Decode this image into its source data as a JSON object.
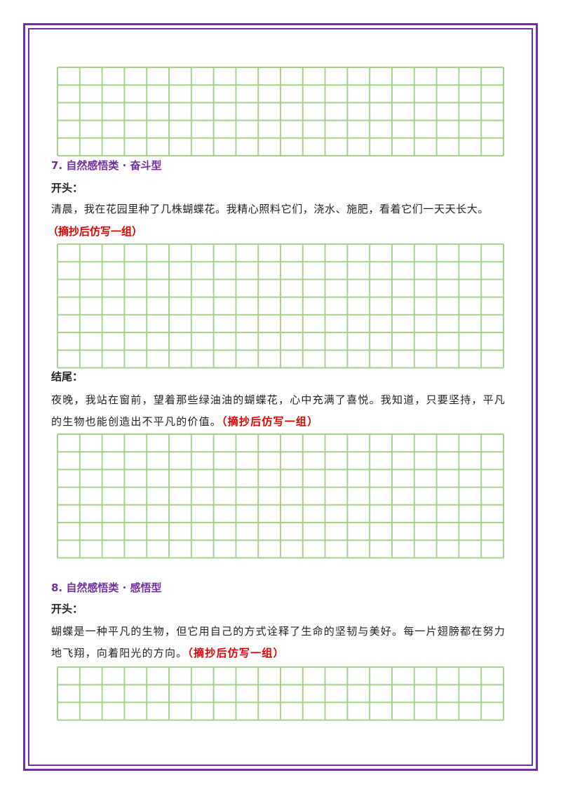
{
  "sections": [
    {
      "heading": "7.  自然感悟类 · 奋斗型",
      "opening_label": "开头：",
      "opening_text": "清晨，我在花园里种了几株蝴蝶花。我精心照料它们，浇水、施肥，看着它们一天天长大。",
      "opening_note": "（摘抄后仿写一组）",
      "ending_label": "结尾：",
      "ending_text": "夜晚，我站在窗前，望着那些绿油油的蝴蝶花，心中充满了喜悦。我知道，只要坚持，平凡的生物也能创造出不平凡的价值。",
      "ending_note": "（摘抄后仿写一组）"
    },
    {
      "heading": "8.  自然感悟类 · 感悟型",
      "opening_label": "开头：",
      "opening_text": "蝴蝶是一种平凡的生物，但它用自己的方式诠释了生命的坚韧与美好。每一片翅膀都在努力地飞翔，向着阳光的方向。",
      "opening_note": "（摘抄后仿写一组）"
    }
  ]
}
